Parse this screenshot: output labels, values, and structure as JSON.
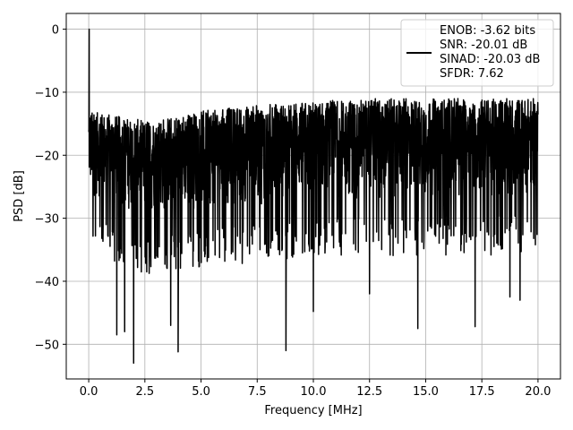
{
  "chart_data": {
    "type": "line",
    "title": "",
    "xlabel": "Frequency [MHz]",
    "ylabel": "PSD [dB]",
    "xlim": [
      -1.0,
      21.0
    ],
    "ylim": [
      -55.5,
      2.5
    ],
    "x_ticks": [
      0.0,
      2.5,
      5.0,
      7.5,
      10.0,
      12.5,
      15.0,
      17.5,
      20.0
    ],
    "x_tick_labels": [
      "0.0",
      "2.5",
      "5.0",
      "7.5",
      "10.0",
      "12.5",
      "15.0",
      "17.5",
      "20.0"
    ],
    "y_ticks": [
      0,
      -10,
      -20,
      -30,
      -40,
      -50
    ],
    "y_tick_labels": [
      "0",
      "−10",
      "−20",
      "−30",
      "−40",
      "−50"
    ],
    "grid": true,
    "legend_placement": "top-right",
    "line_color": "#000000",
    "legend_lines": [
      "ENOB: -3.62 bits",
      "SNR: -20.01 dB",
      "SINAD: -20.03 dB",
      "SFDR: 7.62"
    ],
    "series": [
      {
        "x_start": 0.0,
        "x_end": 20.0,
        "peak": {
          "x": 0.02,
          "y": 0.0
        },
        "noise_upper_envelope": [
          [
            0.0,
            -13.0
          ],
          [
            2.5,
            -14.5
          ],
          [
            5.0,
            -13.0
          ],
          [
            7.5,
            -12.0
          ],
          [
            10.0,
            -11.5
          ],
          [
            12.5,
            -11.0
          ],
          [
            15.0,
            -11.0
          ],
          [
            17.5,
            -11.0
          ],
          [
            20.0,
            -11.0
          ]
        ],
        "noise_lower_envelope": [
          [
            0.0,
            -29.0
          ],
          [
            2.5,
            -33.0
          ],
          [
            5.0,
            -32.0
          ],
          [
            7.5,
            -31.0
          ],
          [
            10.0,
            -30.0
          ],
          [
            12.5,
            -30.0
          ],
          [
            15.0,
            -30.0
          ],
          [
            17.5,
            -30.0
          ],
          [
            20.0,
            -29.0
          ]
        ],
        "notable_dips": [
          [
            1.25,
            -48.5
          ],
          [
            1.6,
            -48.0
          ],
          [
            2.0,
            -53.0
          ],
          [
            3.65,
            -47.0
          ],
          [
            3.98,
            -51.2
          ],
          [
            8.78,
            -51.0
          ],
          [
            10.0,
            -44.8
          ],
          [
            12.5,
            -42.0
          ],
          [
            14.65,
            -47.5
          ],
          [
            17.2,
            -47.2
          ],
          [
            18.75,
            -42.5
          ],
          [
            19.2,
            -43.0
          ]
        ]
      }
    ]
  }
}
